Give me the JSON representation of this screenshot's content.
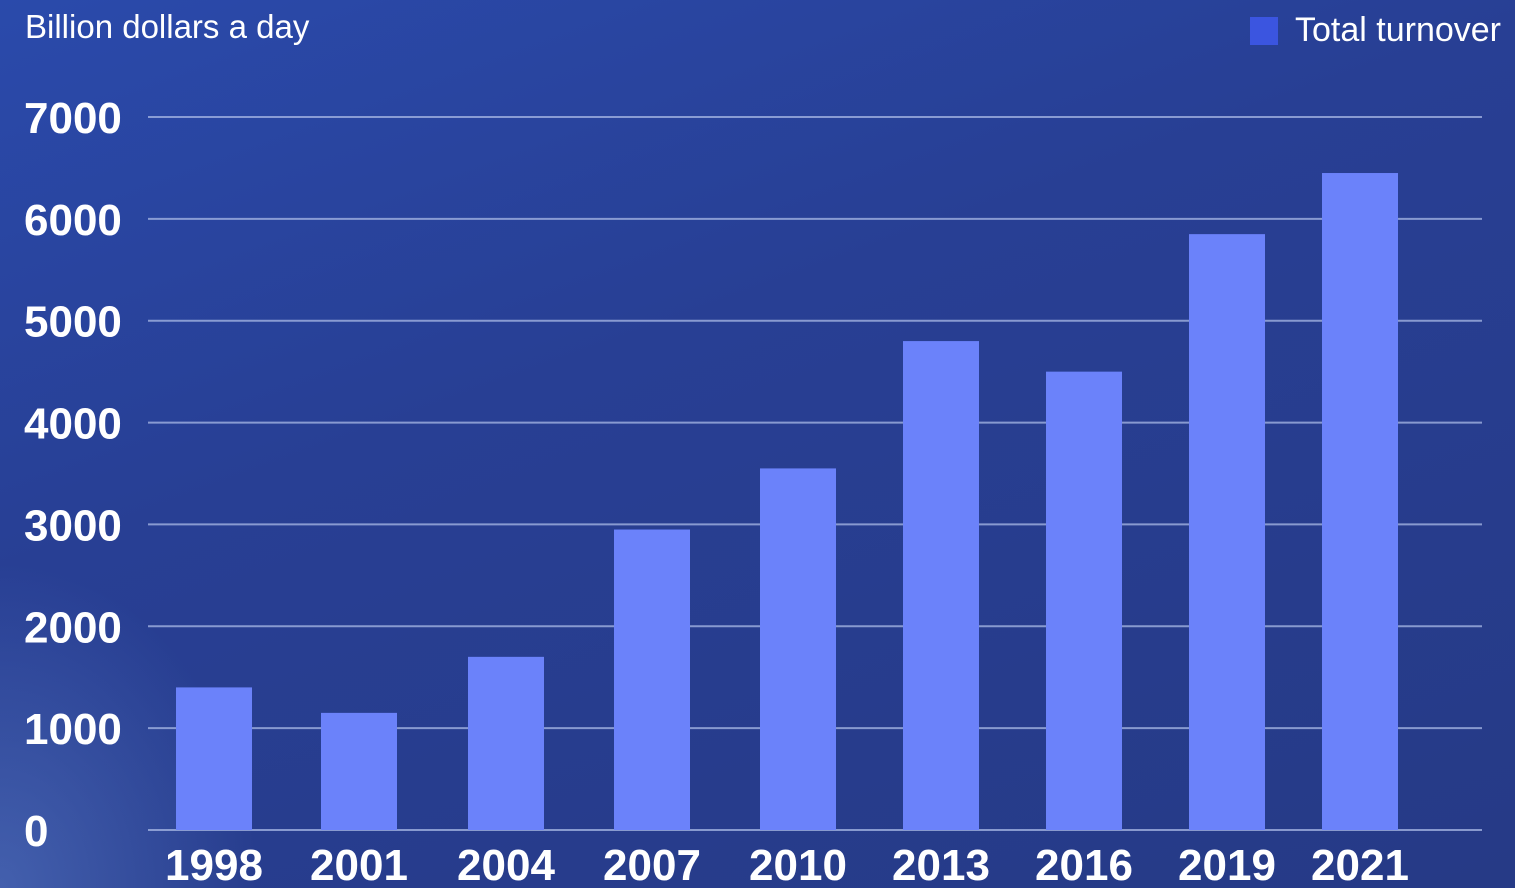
{
  "chart_data": {
    "type": "bar",
    "title": "",
    "ylabel": "Billion dollars a day",
    "xlabel": "",
    "categories": [
      "1998",
      "2001",
      "2004",
      "2007",
      "2010",
      "2013",
      "2016",
      "2019",
      "2021"
    ],
    "series": [
      {
        "name": "Total turnover",
        "values": [
          1400,
          1150,
          1700,
          2950,
          3550,
          4800,
          4500,
          5850,
          6450
        ],
        "color": "#6b82fa"
      }
    ],
    "ylim": [
      0,
      7000
    ],
    "yticks": [
      "0",
      "1000",
      "2000",
      "3000",
      "4000",
      "5000",
      "6000",
      "7000"
    ],
    "grid": true,
    "legend_position": "top-right",
    "legend_swatch_color": "#3b55e0"
  }
}
